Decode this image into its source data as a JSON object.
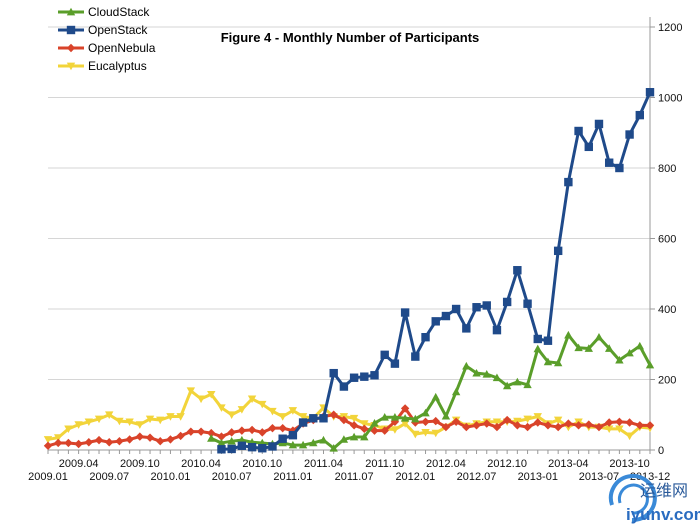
{
  "chart_data": {
    "type": "line",
    "title": "Figure 4 - Monthly Number of Participants",
    "xlabel": "",
    "ylabel": "",
    "x_unit": "month index from 2009.01 (0) to 2013-12 (59)",
    "xlim": [
      0,
      59
    ],
    "ylim": [
      0,
      1200
    ],
    "y_ticks": [
      0,
      200,
      400,
      600,
      800,
      1000,
      1200
    ],
    "y_axis_side": "right",
    "grid": true,
    "legend_position": "top-left",
    "x_ticks": [
      {
        "i": 0,
        "label": "2009.01",
        "row": 2
      },
      {
        "i": 3,
        "label": "2009.04",
        "row": 1
      },
      {
        "i": 6,
        "label": "2009.07",
        "row": 2
      },
      {
        "i": 9,
        "label": "2009.10",
        "row": 1
      },
      {
        "i": 12,
        "label": "2010.01",
        "row": 2
      },
      {
        "i": 15,
        "label": "2010.04",
        "row": 1
      },
      {
        "i": 18,
        "label": "2010.07",
        "row": 2
      },
      {
        "i": 21,
        "label": "2010.10",
        "row": 1
      },
      {
        "i": 24,
        "label": "2011.01",
        "row": 2
      },
      {
        "i": 27,
        "label": "2011.04",
        "row": 1
      },
      {
        "i": 30,
        "label": "2011.07",
        "row": 2
      },
      {
        "i": 33,
        "label": "2011.10",
        "row": 1
      },
      {
        "i": 36,
        "label": "2012.01",
        "row": 2
      },
      {
        "i": 39,
        "label": "2012.04",
        "row": 1
      },
      {
        "i": 42,
        "label": "2012.07",
        "row": 2
      },
      {
        "i": 45,
        "label": "2012.10",
        "row": 1
      },
      {
        "i": 48,
        "label": "2013-01",
        "row": 2
      },
      {
        "i": 51,
        "label": "2013-04",
        "row": 1
      },
      {
        "i": 54,
        "label": "2013-07",
        "row": 2
      },
      {
        "i": 57,
        "label": "2013-10",
        "row": 1
      },
      {
        "i": 59,
        "label": "2013-12",
        "row": 2
      }
    ],
    "series": [
      {
        "name": "CloudStack",
        "color": "#5a9e2a",
        "marker": "triangle-up",
        "start": 16,
        "values": [
          33,
          20,
          25,
          28,
          22,
          20,
          17,
          20,
          14,
          14,
          20,
          28,
          5,
          30,
          37,
          37,
          76,
          93,
          93,
          90,
          88,
          105,
          150,
          96,
          165,
          238,
          218,
          215,
          205,
          182,
          193,
          185,
          287,
          250,
          247,
          326,
          290,
          288,
          320,
          288,
          255,
          275,
          295,
          241
        ]
      },
      {
        "name": "OpenStack",
        "color": "#1f4a8a",
        "marker": "square",
        "start": 17,
        "values": [
          2,
          3,
          12,
          8,
          5,
          10,
          32,
          42,
          78,
          90,
          90,
          218,
          180,
          205,
          208,
          212,
          270,
          245,
          390,
          265,
          320,
          365,
          380,
          400,
          345,
          405,
          410,
          340,
          420,
          510,
          415,
          315,
          310,
          565,
          760,
          905,
          860,
          925,
          815,
          800,
          895,
          950,
          1015
        ]
      },
      {
        "name": "OpenNebula",
        "color": "#d9432a",
        "marker": "diamond",
        "start": 0,
        "values": [
          12,
          20,
          20,
          17,
          22,
          28,
          22,
          25,
          30,
          38,
          35,
          25,
          30,
          40,
          52,
          52,
          48,
          38,
          50,
          55,
          57,
          50,
          62,
          62,
          55,
          75,
          85,
          95,
          100,
          85,
          70,
          60,
          55,
          55,
          80,
          118,
          78,
          80,
          82,
          65,
          80,
          65,
          70,
          75,
          65,
          85,
          70,
          65,
          78,
          70,
          65,
          75,
          70,
          72,
          65,
          78,
          80,
          78,
          70,
          70
        ]
      },
      {
        "name": "Eucalyptus",
        "color": "#f2d43a",
        "marker": "triangle-down",
        "start": 0,
        "values": [
          30,
          35,
          60,
          72,
          80,
          88,
          100,
          82,
          80,
          72,
          88,
          85,
          95,
          95,
          168,
          145,
          158,
          120,
          100,
          115,
          145,
          130,
          110,
          95,
          112,
          95,
          90,
          120,
          95,
          95,
          90,
          75,
          70,
          60,
          58,
          75,
          45,
          50,
          48,
          65,
          85,
          68,
          75,
          80,
          80,
          80,
          82,
          88,
          95,
          75,
          85,
          65,
          80,
          65,
          65,
          60,
          60,
          40,
          65,
          62
        ]
      }
    ]
  },
  "watermark": {
    "cn": "运维网",
    "en": "iyunv.com"
  }
}
